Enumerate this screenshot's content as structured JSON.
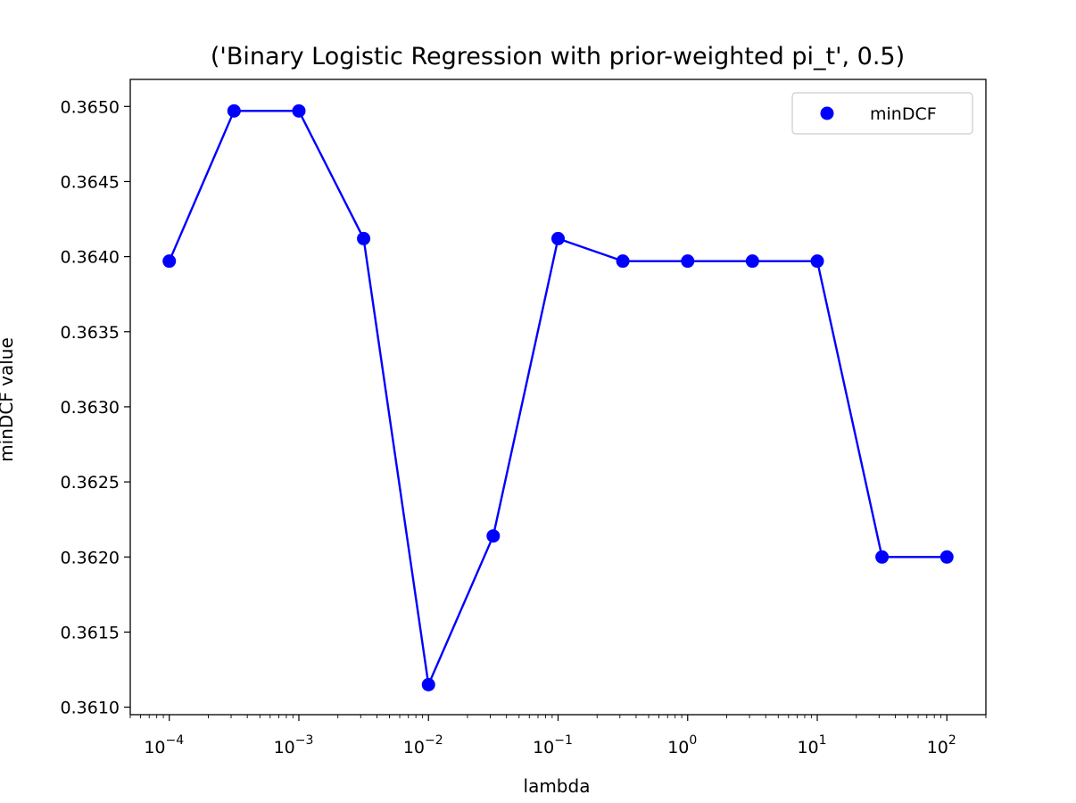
{
  "chart_data": {
    "type": "line",
    "title": "('Binary Logistic Regression with prior-weighted pi_t', 0.5)",
    "xlabel": "lambda",
    "ylabel": "minDCF value",
    "xscale": "log",
    "xlim": [
      5e-05,
      200
    ],
    "ylim": [
      0.36095,
      0.36518
    ],
    "grid": false,
    "legend_position": "top-right",
    "x_ticks": [
      {
        "value": 0.0001,
        "base": "10",
        "exp": "−4"
      },
      {
        "value": 0.001,
        "base": "10",
        "exp": "−3"
      },
      {
        "value": 0.01,
        "base": "10",
        "exp": "−2"
      },
      {
        "value": 0.1,
        "base": "10",
        "exp": "−1"
      },
      {
        "value": 1,
        "base": "10",
        "exp": "0"
      },
      {
        "value": 10,
        "base": "10",
        "exp": "1"
      },
      {
        "value": 100,
        "base": "10",
        "exp": "2"
      }
    ],
    "y_ticks": [
      "0.3610",
      "0.3615",
      "0.3620",
      "0.3625",
      "0.3630",
      "0.3635",
      "0.3640",
      "0.3645",
      "0.3650"
    ],
    "series": [
      {
        "name": "minDCF",
        "color": "#0000ff",
        "x": [
          0.0001,
          0.000316,
          0.001,
          0.00316,
          0.01,
          0.0316,
          0.1,
          0.316,
          1,
          3.16,
          10,
          31.6,
          100
        ],
        "y": [
          0.36397,
          0.36497,
          0.36497,
          0.36412,
          0.36115,
          0.36214,
          0.36412,
          0.36397,
          0.36397,
          0.36397,
          0.36397,
          0.362,
          0.362
        ]
      }
    ]
  }
}
